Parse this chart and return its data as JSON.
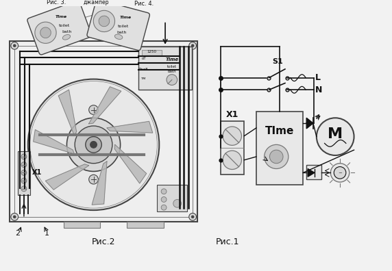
{
  "bg_color": "#f2f2f2",
  "lc": "#444444",
  "dc": "#111111",
  "gc": "#777777",
  "fig2_label": "Рис.2",
  "fig1_label": "Рис.1",
  "label_X1": "X1",
  "label_1": "1",
  "label_2": "2",
  "label_S1": "S1",
  "label_L": "L",
  "label_N": "N",
  "label_Time": "TIme",
  "label_X1_circuit": "X1",
  "label_M": "M",
  "label_ris3": "Рис. 3.",
  "label_ris4": "Рис. 4.",
  "label_djumper": "джампер"
}
